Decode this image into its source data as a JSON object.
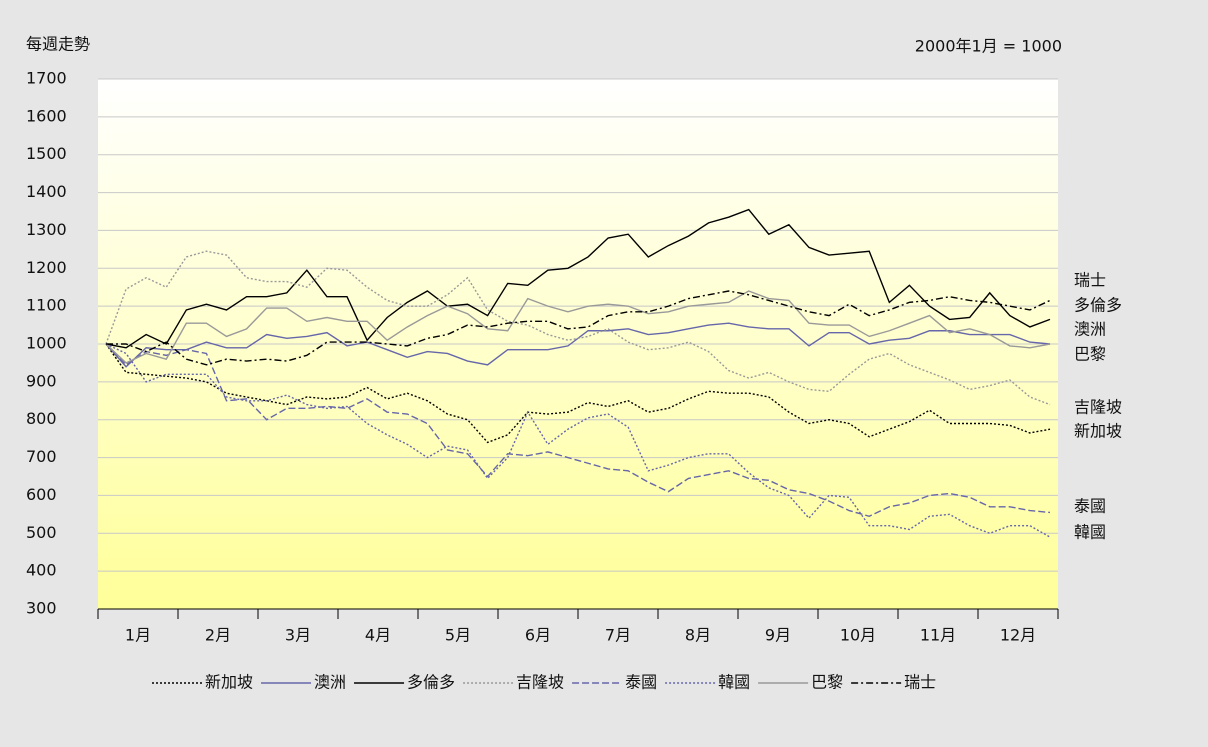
{
  "chart_data": {
    "type": "line",
    "title": "每週走勢",
    "subtitle": "2000年1月 = 1000",
    "categories": [
      null,
      "1月",
      null,
      null,
      null,
      "2月",
      null,
      null,
      null,
      "3月",
      null,
      null,
      null,
      "4月",
      null,
      null,
      null,
      "5月",
      null,
      null,
      null,
      "6月",
      null,
      null,
      null,
      "7月",
      null,
      null,
      null,
      "8月",
      null,
      null,
      null,
      "9月",
      null,
      null,
      null,
      "10月",
      null,
      null,
      null,
      "11月",
      null,
      null,
      null,
      "12月",
      null,
      null
    ],
    "ylim": [
      300,
      1700
    ],
    "yticks": [
      300,
      400,
      500,
      600,
      700,
      800,
      900,
      1000,
      1100,
      1200,
      1300,
      1400,
      1500,
      1600,
      1700
    ],
    "grid": true,
    "legend": "bottom",
    "series": [
      {
        "name": "新加坡",
        "color": "#000000",
        "style": "dotted",
        "values": [
          1000,
          925,
          920,
          915,
          910,
          900,
          870,
          860,
          850,
          840,
          860,
          855,
          860,
          885,
          855,
          870,
          850,
          815,
          800,
          740,
          760,
          820,
          815,
          820,
          845,
          835,
          850,
          820,
          830,
          855,
          875,
          870,
          870,
          860,
          820,
          790,
          800,
          790,
          755,
          775,
          795,
          825,
          790,
          790,
          790,
          785,
          765,
          775
        ]
      },
      {
        "name": "澳洲",
        "color": "#6666aa",
        "style": "solid",
        "values": [
          1000,
          940,
          990,
          985,
          985,
          1005,
          990,
          990,
          1025,
          1015,
          1020,
          1030,
          995,
          1005,
          985,
          965,
          980,
          975,
          955,
          945,
          985,
          985,
          985,
          995,
          1035,
          1035,
          1040,
          1025,
          1030,
          1040,
          1050,
          1055,
          1045,
          1040,
          1040,
          995,
          1030,
          1030,
          1000,
          1010,
          1015,
          1035,
          1035,
          1025,
          1025,
          1025,
          1005,
          1000
        ]
      },
      {
        "name": "多倫多",
        "color": "#000000",
        "style": "solid",
        "values": [
          1000,
          990,
          1025,
          1000,
          1090,
          1105,
          1090,
          1125,
          1125,
          1135,
          1195,
          1125,
          1125,
          1010,
          1070,
          1110,
          1140,
          1100,
          1105,
          1075,
          1160,
          1155,
          1195,
          1200,
          1230,
          1280,
          1290,
          1230,
          1260,
          1285,
          1320,
          1335,
          1355,
          1290,
          1315,
          1255,
          1235,
          1240,
          1245,
          1110,
          1155,
          1100,
          1065,
          1070,
          1135,
          1075,
          1045,
          1065
        ]
      },
      {
        "name": "吉隆坡",
        "color": "#999999",
        "style": "dotted",
        "values": [
          1000,
          1145,
          1175,
          1150,
          1230,
          1245,
          1235,
          1175,
          1165,
          1165,
          1150,
          1200,
          1195,
          1150,
          1115,
          1100,
          1100,
          1130,
          1175,
          1090,
          1060,
          1050,
          1025,
          1010,
          1020,
          1040,
          1005,
          985,
          990,
          1005,
          980,
          930,
          910,
          925,
          900,
          880,
          875,
          920,
          960,
          975,
          945,
          925,
          905,
          880,
          890,
          905,
          860,
          840
        ]
      },
      {
        "name": "泰國",
        "color": "#6666aa",
        "style": "dashed",
        "values": [
          1000,
          945,
          980,
          970,
          985,
          975,
          850,
          855,
          800,
          830,
          830,
          835,
          830,
          855,
          820,
          815,
          790,
          720,
          710,
          650,
          710,
          705,
          715,
          700,
          685,
          670,
          665,
          635,
          610,
          645,
          655,
          665,
          645,
          640,
          615,
          605,
          585,
          560,
          545,
          570,
          580,
          600,
          605,
          595,
          570,
          570,
          560,
          555
        ]
      },
      {
        "name": "韓國",
        "color": "#6666aa",
        "style": "dotted",
        "values": [
          1000,
          975,
          900,
          920,
          920,
          920,
          860,
          850,
          850,
          865,
          840,
          830,
          835,
          790,
          760,
          735,
          700,
          730,
          720,
          645,
          700,
          820,
          735,
          775,
          805,
          815,
          780,
          665,
          680,
          700,
          710,
          710,
          660,
          620,
          600,
          540,
          600,
          595,
          520,
          520,
          510,
          545,
          550,
          520,
          500,
          520,
          520,
          490
        ]
      },
      {
        "name": "巴黎",
        "color": "#999999",
        "style": "solid",
        "values": [
          1000,
          950,
          975,
          960,
          1055,
          1055,
          1020,
          1040,
          1095,
          1095,
          1060,
          1070,
          1060,
          1060,
          1010,
          1045,
          1075,
          1100,
          1080,
          1040,
          1035,
          1120,
          1100,
          1085,
          1100,
          1105,
          1100,
          1080,
          1085,
          1100,
          1105,
          1110,
          1140,
          1120,
          1115,
          1055,
          1050,
          1050,
          1020,
          1035,
          1055,
          1075,
          1030,
          1040,
          1025,
          995,
          990,
          1000
        ]
      },
      {
        "name": "瑞士",
        "color": "#000000",
        "style": "dashdot",
        "values": [
          1000,
          1000,
          980,
          1005,
          960,
          945,
          960,
          955,
          960,
          955,
          970,
          1005,
          1005,
          1005,
          1000,
          995,
          1015,
          1025,
          1050,
          1045,
          1055,
          1060,
          1060,
          1040,
          1045,
          1075,
          1085,
          1085,
          1100,
          1120,
          1130,
          1140,
          1130,
          1115,
          1100,
          1085,
          1075,
          1105,
          1075,
          1090,
          1110,
          1115,
          1125,
          1115,
          1110,
          1100,
          1090,
          1115
        ]
      }
    ]
  }
}
